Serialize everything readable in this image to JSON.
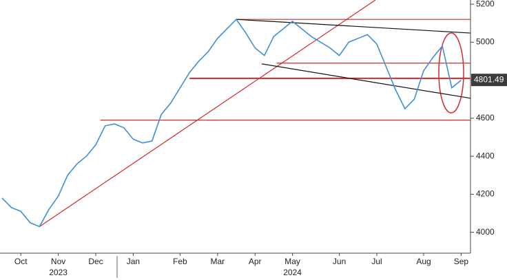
{
  "chart_data": {
    "type": "line",
    "categories": [
      null,
      null,
      "Oct",
      null,
      null,
      null,
      "Nov",
      null,
      null,
      null,
      "Dec",
      null,
      null,
      null,
      "Jan",
      null,
      null,
      null,
      null,
      "Feb",
      null,
      null,
      null,
      "Mar",
      null,
      null,
      null,
      "Apr",
      null,
      null,
      null,
      "May",
      null,
      null,
      null,
      null,
      "Jun",
      null,
      null,
      null,
      "Jul",
      null,
      null,
      null,
      null,
      "Aug",
      null,
      null,
      null,
      "Sep"
    ],
    "year_labels": [
      {
        "label": "2023",
        "at": 6
      },
      {
        "label": "2024",
        "at": 31
      }
    ],
    "series": [
      {
        "color": "#3b8fd8",
        "values": [
          4180,
          4130,
          4110,
          4050,
          4030,
          4120,
          4190,
          4300,
          4360,
          4400,
          4460,
          4560,
          4570,
          4550,
          4490,
          4470,
          4480,
          4620,
          4680,
          4760,
          4840,
          4900,
          4950,
          5020,
          5070,
          5120,
          5050,
          4970,
          4930,
          5030,
          5070,
          5110,
          5070,
          5030,
          5000,
          4970,
          4930,
          5000,
          5020,
          5040,
          4990,
          4870,
          4750,
          4650,
          4700,
          4850,
          4920,
          4980,
          4760,
          4800
        ]
      }
    ],
    "lines": [
      {
        "color": "#d42a2a",
        "x": [
          4,
          39.85
        ],
        "y": [
          4030,
          5222
        ]
      },
      {
        "color": "#d42a2a",
        "x": [
          10.5,
          50
        ],
        "y": [
          4590,
          4590
        ]
      },
      {
        "color": "#d42a2a",
        "x": [
          20,
          50
        ],
        "y": [
          4810,
          4810
        ]
      },
      {
        "color": "#d42a2a",
        "x": [
          29.3,
          50
        ],
        "y": [
          4890,
          4890
        ]
      },
      {
        "color": "#d42a2a",
        "x": [
          25,
          50
        ],
        "y": [
          5120,
          5120
        ]
      },
      {
        "color": "#111111",
        "x": [
          25,
          50
        ],
        "y": [
          5120,
          5048
        ]
      },
      {
        "color": "#111111",
        "x": [
          27.7,
          50
        ],
        "y": [
          4886,
          4705
        ]
      }
    ],
    "last_label": {
      "value": 4801.49
    },
    "ylim": [
      3890,
      5222
    ],
    "yticks": [
      4000,
      4200,
      4400,
      4600,
      4800,
      5000,
      5200
    ],
    "grid": false
  }
}
